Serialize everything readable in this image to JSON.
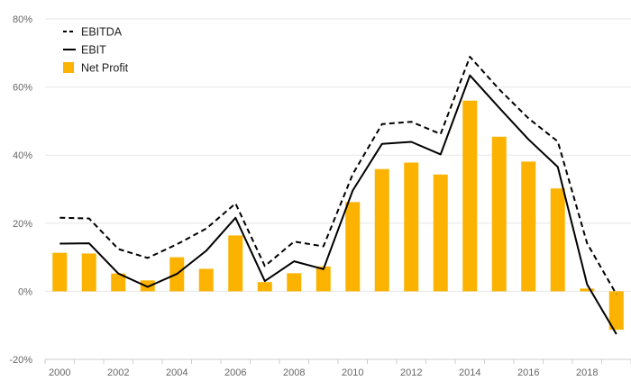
{
  "chart_data": {
    "type": "bar",
    "x": [
      "2000",
      "2001",
      "2002",
      "2003",
      "2004",
      "2005",
      "2006",
      "2007",
      "2008",
      "2009",
      "2010",
      "2011",
      "2012",
      "2013",
      "2014",
      "2015",
      "2016",
      "2017",
      "2018",
      "2019"
    ],
    "x_tick_labels": [
      "2000",
      "2002",
      "2004",
      "2006",
      "2008",
      "2010",
      "2012",
      "2014",
      "2016",
      "2018"
    ],
    "y_tick_labels": [
      "80%",
      "60%",
      "40%",
      "20%",
      "0%",
      "-20%"
    ],
    "y_ticks": [
      80,
      60,
      40,
      20,
      0,
      -20
    ],
    "ylim": [
      -20,
      80
    ],
    "y_unit": "%",
    "grid": true,
    "legend_position": "top-left",
    "series": [
      {
        "name": "EBITDA",
        "type": "line",
        "style": "dashed",
        "color": "#000000",
        "values": [
          21.6,
          21.4,
          12.4,
          9.8,
          13.8,
          18.4,
          25.8,
          7.4,
          14.6,
          13.2,
          34.4,
          49.1,
          49.8,
          46.2,
          68.9,
          59.3,
          50.8,
          44.0,
          14.1,
          -0.9
        ]
      },
      {
        "name": "EBIT",
        "type": "line",
        "style": "solid",
        "color": "#000000",
        "values": [
          14.0,
          14.1,
          5.2,
          1.3,
          5.1,
          11.9,
          21.6,
          3.0,
          8.8,
          6.5,
          29.6,
          43.3,
          43.9,
          40.2,
          63.4,
          53.9,
          44.6,
          36.5,
          2.0,
          -12.6
        ]
      },
      {
        "name": "Net Profit",
        "type": "bar",
        "color": "#FBB300",
        "values": [
          11.3,
          11.1,
          5.2,
          3.2,
          10.0,
          6.6,
          16.4,
          2.7,
          5.3,
          7.3,
          26.2,
          35.9,
          37.8,
          34.3,
          56.0,
          45.4,
          38.1,
          30.2,
          0.8,
          -11.3
        ]
      }
    ]
  }
}
